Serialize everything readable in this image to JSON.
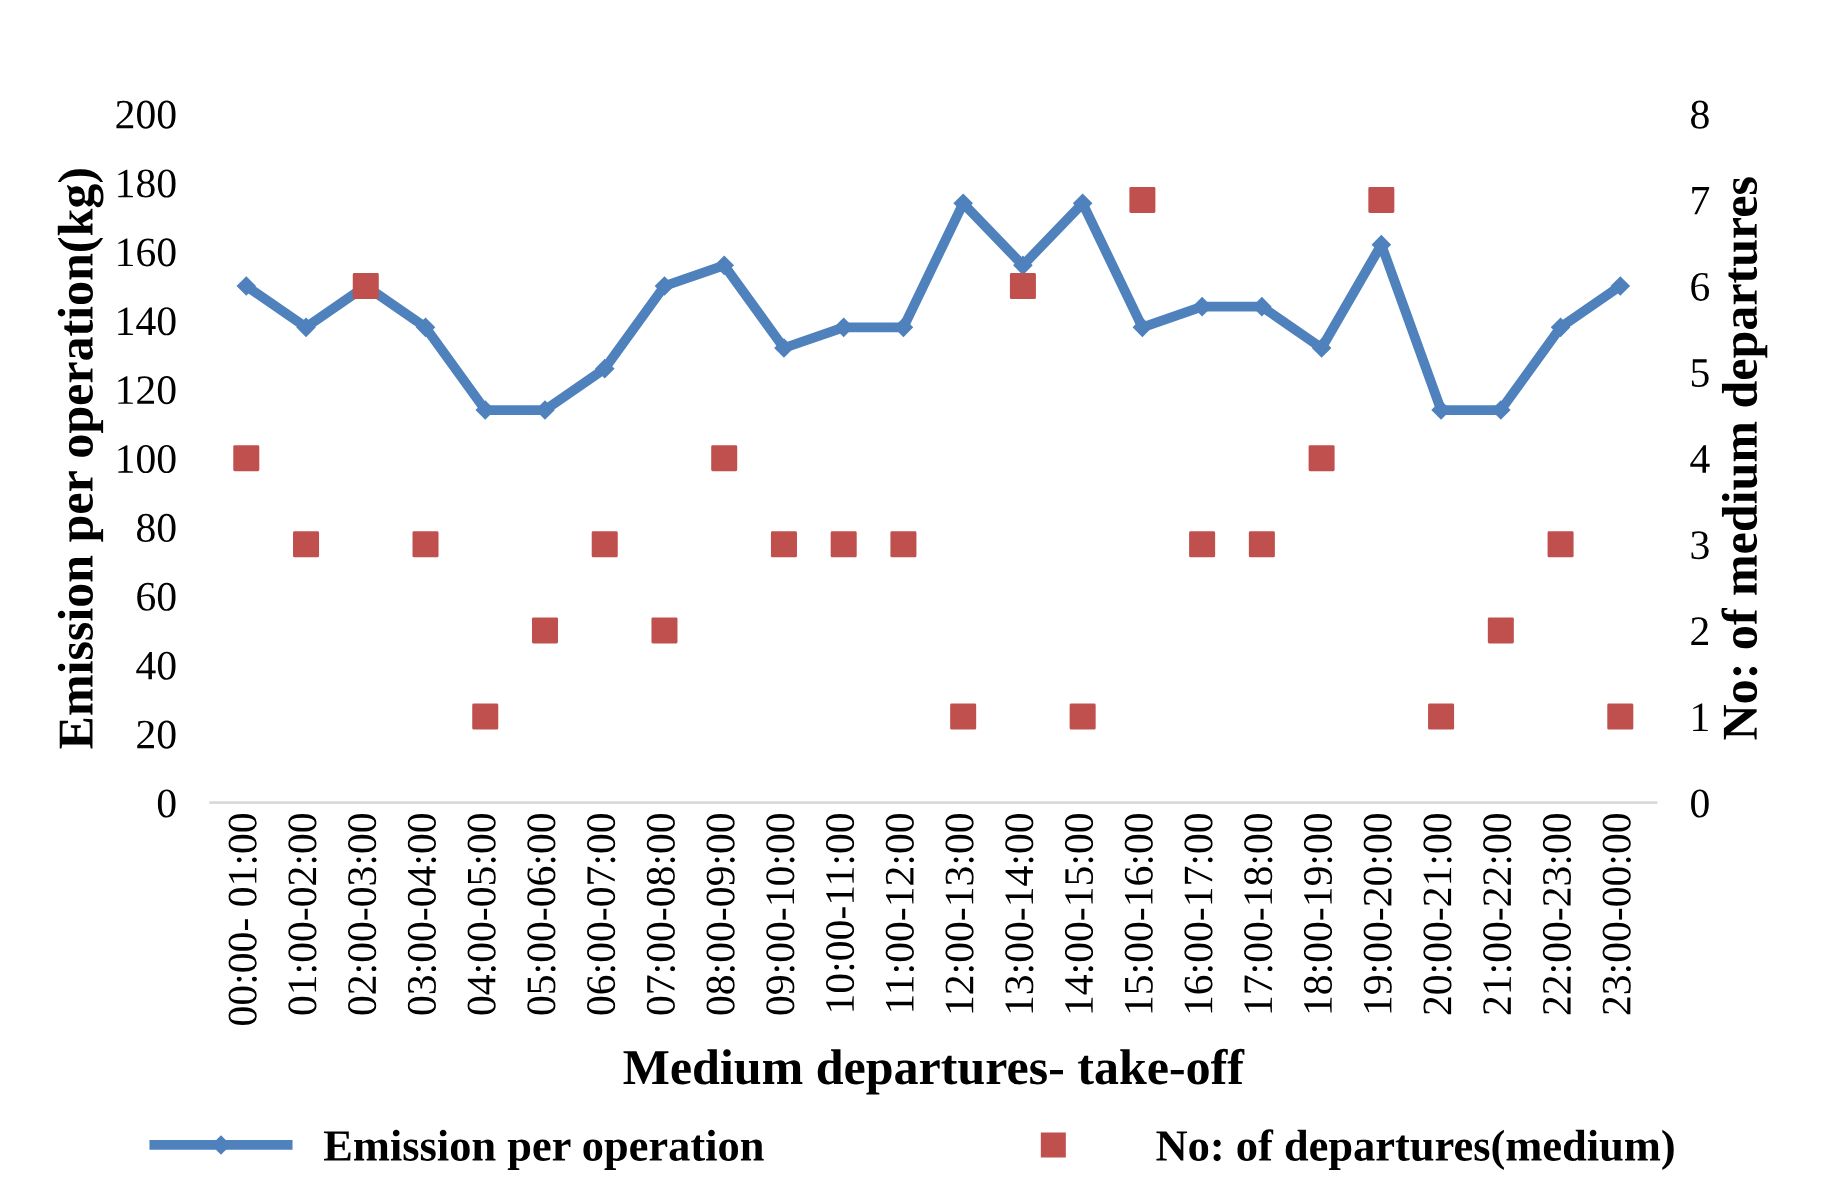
{
  "chart_data": {
    "type": "line",
    "xlabel": "Medium departures- take-off",
    "ylabel": "Emission per operation(kg)",
    "y2label": "No: of medium departures",
    "categories": [
      "00:00- 01:00",
      "01:00-02:00",
      "02:00-03:00",
      "03:00-04:00",
      "04:00-05:00",
      "05:00-06:00",
      "06:00-07:00",
      "07:00-08:00",
      "08:00-09:00",
      "09:00-10:00",
      "10:00-11:00",
      "11:00-12:00",
      "12:00-13:00",
      "13:00-14:00",
      "14:00-15:00",
      "15:00-16:00",
      "16:00-17:00",
      "17:00-18:00",
      "18:00-19:00",
      "19:00-20:00",
      "20:00-21:00",
      "21:00-22:00",
      "22:00-23:00",
      "23:00-00:00"
    ],
    "series": [
      {
        "name": "Emission per operation",
        "marker": "diamond",
        "color": "#4f81bd",
        "values": [
          150,
          138,
          150,
          138,
          114,
          114,
          126,
          150,
          156,
          132,
          138,
          138,
          174,
          156,
          174,
          138,
          144,
          144,
          132,
          162,
          114,
          114,
          138,
          150
        ]
      },
      {
        "name": "No: of departures(medium)",
        "type": "scatter",
        "marker": "square",
        "axis": "y2",
        "color": "#c0504d",
        "values": [
          4,
          3,
          6,
          3,
          1,
          2,
          3,
          2,
          4,
          3,
          3,
          3,
          1,
          6,
          1,
          7,
          3,
          3,
          4,
          7,
          1,
          2,
          3,
          1
        ]
      }
    ],
    "ylim": [
      0,
      200
    ],
    "yticks": [
      0,
      20,
      40,
      60,
      80,
      100,
      120,
      140,
      160,
      180,
      200
    ],
    "y2lim": [
      0,
      8
    ],
    "y2ticks": [
      0,
      1,
      2,
      3,
      4,
      5,
      6,
      7,
      8
    ],
    "grid": false,
    "legend": "bottom"
  }
}
